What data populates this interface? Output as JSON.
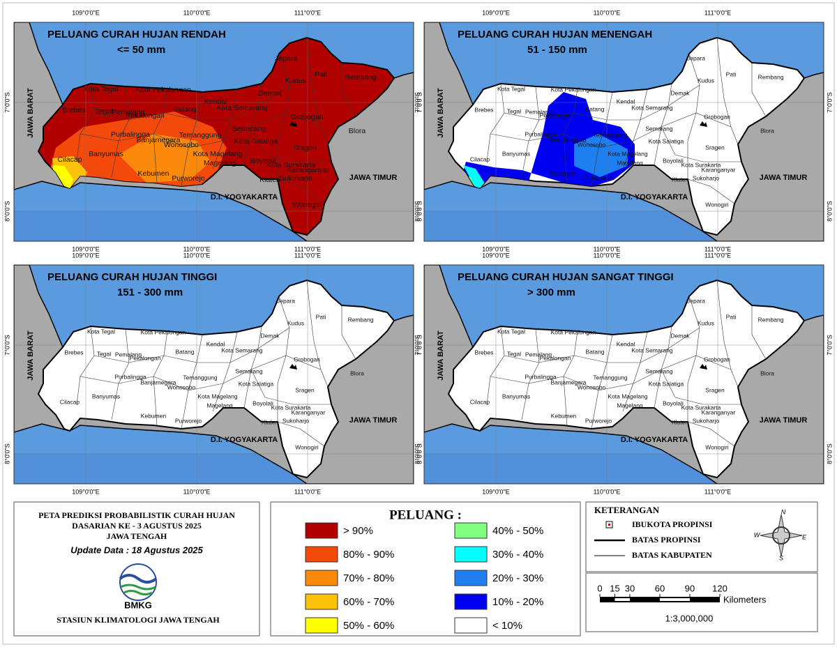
{
  "panels": [
    {
      "title": "PELUANG CURAH HUJAN RENDAH",
      "subtitle": "<= 50 mm"
    },
    {
      "title": "PELUANG CURAH HUJAN MENENGAH",
      "subtitle": "51 - 150 mm"
    },
    {
      "title": "PELUANG CURAH HUJAN TINGGI",
      "subtitle": "151 - 300 mm"
    },
    {
      "title": "PELUANG CURAH HUJAN SANGAT TINGGI",
      "subtitle": "> 300 mm"
    }
  ],
  "graticule": {
    "lon": [
      "109°0'0\"E",
      "110°0'0\"E",
      "111°0'0\"E"
    ],
    "lat": [
      "7°0'0\"S",
      "8°0'0\"S"
    ]
  },
  "regions": [
    "JAWA BARAT",
    "JAWA TIMUR",
    "D.I. YOGYAKARTA"
  ],
  "districts": [
    "Jepara",
    "Kudus",
    "Pati",
    "Rembang",
    "Demak",
    "Kota Tegal",
    "Kota Pekalongan",
    "Brebes",
    "Tegal",
    "Pemalang",
    "Batang",
    "Kendal",
    "Kota Semarang",
    "Grobogan",
    "Blora",
    "Purbalingga",
    "Semarang",
    "Temanggung",
    "Kota Salatiga",
    "Wonosobo",
    "Banyumas",
    "Sragen",
    "Banjarnegara",
    "Boyolali",
    "Kota Surakarta",
    "Cilacap",
    "Kota Magelang",
    "Magelang",
    "Karanganyar",
    "Klaten",
    "Sukoharjo",
    "Kebumen",
    "Purworejo",
    "Wonogiri",
    "Pekalongan"
  ],
  "info": {
    "title_lines": [
      "PETA PREDIKSI PROBABILISTIK CURAH HUJAN",
      "DASARIAN KE - 3 AGUSTUS 2025",
      "JAWA TENGAH"
    ],
    "update": "Update Data : 18 Agustus 2025",
    "logo": "BMKG",
    "station": "STASIUN KLIMATOLOGI JAWA TENGAH"
  },
  "legend": {
    "title": "PELUANG :",
    "items": [
      {
        "label": "> 90%",
        "color": "#b00000"
      },
      {
        "label": "80% - 90%",
        "color": "#f34a0c"
      },
      {
        "label": "70% - 80%",
        "color": "#fb8a0c"
      },
      {
        "label": "60% - 70%",
        "color": "#fcc10a"
      },
      {
        "label": "50% - 60%",
        "color": "#ffff00"
      },
      {
        "label": "40% - 50%",
        "color": "#80ff80"
      },
      {
        "label": "30% - 40%",
        "color": "#00ffff"
      },
      {
        "label": "20% - 30%",
        "color": "#1e7ff0"
      },
      {
        "label": "10% - 20%",
        "color": "#0000f0"
      },
      {
        "label": "< 10%",
        "color": "#ffffff"
      }
    ]
  },
  "keterangan": {
    "title": "KETERANGAN",
    "items": [
      "IBUKOTA PROPINSI",
      "BATAS PROPINSI",
      "BATAS KABUPATEN"
    ]
  },
  "compass": {
    "n": "N",
    "w": "W",
    "e": "E",
    "s": "S"
  },
  "scale": {
    "ticks": [
      0,
      15,
      30,
      60,
      90,
      120
    ],
    "unit": "Kilometers",
    "ratio": "1:3,000,000"
  }
}
